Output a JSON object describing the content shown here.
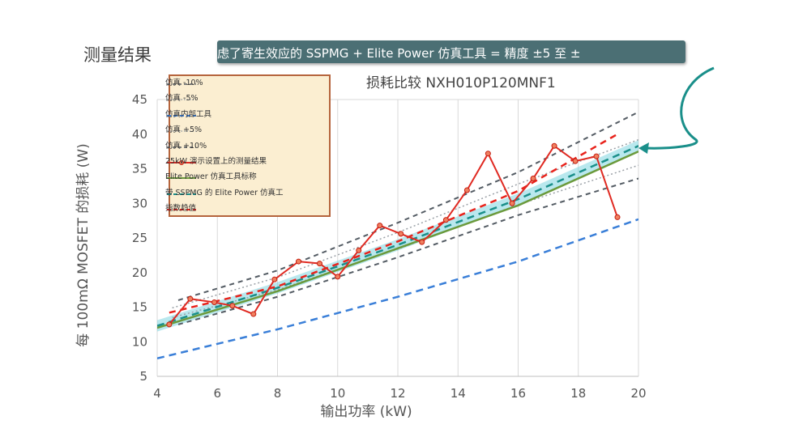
{
  "header": {
    "title": "测量结果",
    "banner_text": "虑了寄生效应的 SSPMG + Elite Power 仿真工具 = 精度 ±5 至 ±"
  },
  "colors": {
    "measured": "#e02a22",
    "trend": "#e8231c",
    "calibration": "#6b9a3c",
    "ssp_tool": "#1a8f8a",
    "bound10": "#545c64",
    "bound5": "#9aa0a6",
    "internal": "#3a7fd8",
    "band": "#7fd6e0",
    "banner": "#4b6f74",
    "legend_bg": "#fbeed1",
    "legend_border": "#b5643c"
  },
  "legend": {
    "items": [
      {
        "label": "仿真 -10%",
        "style": "dash-dark"
      },
      {
        "label": "仿真 -5%",
        "style": "dot-grey"
      },
      {
        "label": "仿真内部工具",
        "style": "dash-blue"
      },
      {
        "label": "仿真 +5%",
        "style": "dot-grey"
      },
      {
        "label": "仿真 +10%",
        "style": "dash-dark"
      },
      {
        "label": "25kW 演示设置上的测量结果",
        "style": "solid-red-marker"
      },
      {
        "label": "Elite Power 仿真工具标称",
        "style": "solid-green"
      },
      {
        "label": "带 SSPMG 的 Elite Power 仿真工",
        "style": "dash-teal"
      },
      {
        "label": "指数趋值",
        "style": "dash-red"
      }
    ]
  },
  "chart_data": {
    "type": "line",
    "title": "损耗比较 NXH010P120MNF1",
    "xlabel": "输出功率 (kW)",
    "ylabel": "每 100mΩ MOSFET 的损耗 (W)",
    "xlim": [
      4,
      20
    ],
    "ylim": [
      5,
      45
    ],
    "xticks": [
      "4",
      "6",
      "8",
      "10",
      "12",
      "14",
      "16",
      "18",
      "20"
    ],
    "yticks": [
      "5",
      "10",
      "15",
      "20",
      "25",
      "30",
      "35",
      "40",
      "45"
    ],
    "grid": "vertical",
    "legend_position": "top-left",
    "series": [
      {
        "name": "仿真 -10%",
        "x": [
          4.7,
          8,
          12,
          16,
          20
        ],
        "y": [
          12.5,
          16.5,
          22.2,
          28.3,
          33.6
        ]
      },
      {
        "name": "仿真 -5%",
        "x": [
          4.5,
          8,
          12,
          16,
          20
        ],
        "y": [
          13.5,
          17.5,
          23.4,
          29.8,
          35.5
        ]
      },
      {
        "name": "仿真内部工具",
        "x": [
          4,
          8,
          12,
          16,
          20
        ],
        "y": [
          7.6,
          11.8,
          16.5,
          21.6,
          27.7
        ]
      },
      {
        "name": "仿真 +5%",
        "x": [
          4.5,
          8,
          12,
          16,
          20
        ],
        "y": [
          14.9,
          19.3,
          25.8,
          32.8,
          39.2
        ]
      },
      {
        "name": "仿真 +10%",
        "x": [
          4.7,
          8,
          12,
          16,
          20
        ],
        "y": [
          16,
          20.3,
          27.2,
          34.5,
          43.2
        ]
      },
      {
        "name": "25kW 演示设置上的测量结果",
        "x": [
          4.4,
          5.1,
          5.9,
          6.5,
          7.2,
          7.9,
          8.7,
          9.4,
          10,
          10.7,
          11.4,
          12.1,
          12.8,
          13.6,
          14.3,
          15,
          15.8,
          16.5,
          17.2,
          17.9,
          18.6,
          19.3
        ],
        "y": [
          12.5,
          16.2,
          15.7,
          15.2,
          14,
          19,
          21.6,
          21.3,
          19.4,
          23.2,
          26.8,
          25.6,
          24.4,
          27.6,
          31.9,
          37.2,
          30,
          33.6,
          38.3,
          36.1,
          36.8,
          28
        ]
      },
      {
        "name": "Elite Power 仿真工具标称",
        "x": [
          4,
          8,
          12,
          16,
          20
        ],
        "y": [
          12,
          17.3,
          23.5,
          29.7,
          37.5
        ]
      },
      {
        "name": "带 SSPMG 的 Elite Power 仿真工",
        "x": [
          4,
          8,
          12,
          16,
          20
        ],
        "y": [
          12.3,
          17.8,
          24,
          30.6,
          38.3
        ]
      },
      {
        "name": "指数趋值",
        "x": [
          4.4,
          8,
          12,
          16,
          19.3
        ],
        "y": [
          14.2,
          18,
          24.5,
          31.8,
          40
        ]
      }
    ]
  }
}
